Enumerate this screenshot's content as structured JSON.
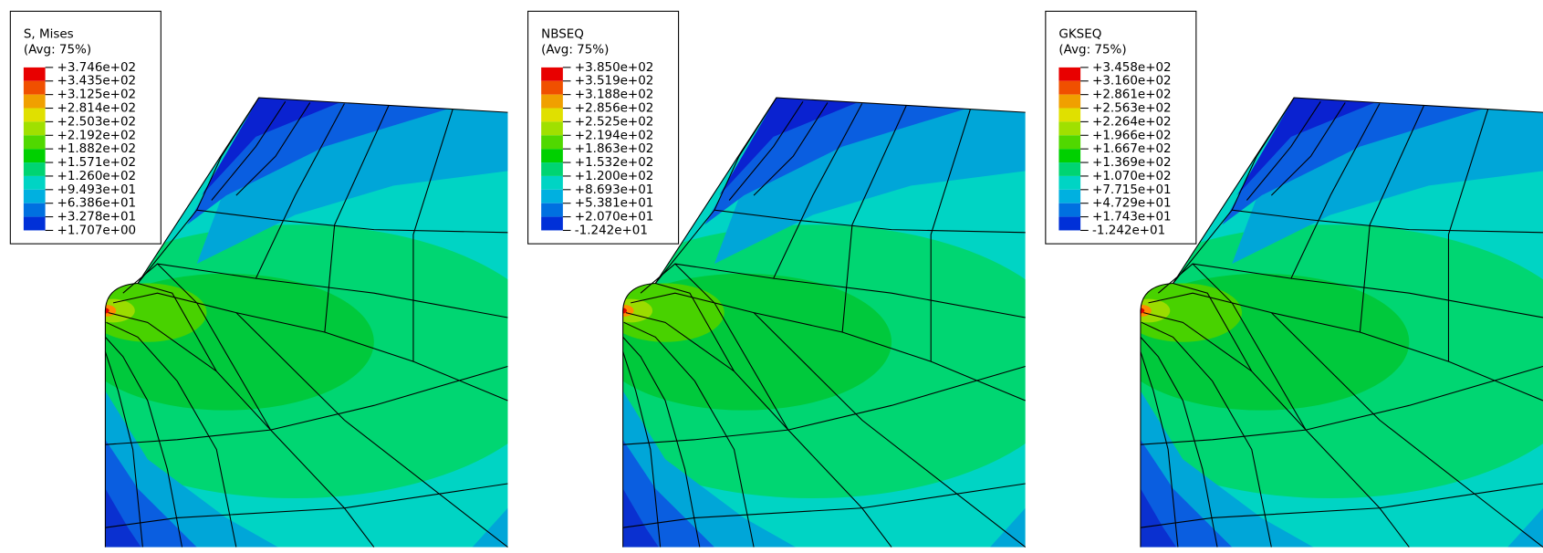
{
  "panels": [
    {
      "title": "S, Mises",
      "subtitle": "(Avg: 75%)",
      "labels": [
        "+3.746e+02",
        "+3.435e+02",
        "+3.125e+02",
        "+2.814e+02",
        "+2.503e+02",
        "+2.192e+02",
        "+1.882e+02",
        "+1.571e+02",
        "+1.260e+02",
        "+9.493e+01",
        "+6.386e+01",
        "+3.278e+01",
        "+1.707e+00"
      ]
    },
    {
      "title": "NBSEQ",
      "subtitle": "(Avg: 75%)",
      "labels": [
        "+3.850e+02",
        "+3.519e+02",
        "+3.188e+02",
        "+2.856e+02",
        "+2.525e+02",
        "+2.194e+02",
        "+1.863e+02",
        "+1.532e+02",
        "+1.200e+02",
        "+8.693e+01",
        "+5.381e+01",
        "+2.070e+01",
        "-1.242e+01"
      ]
    },
    {
      "title": "GKSEQ",
      "subtitle": "(Avg: 75%)",
      "labels": [
        "+3.458e+02",
        "+3.160e+02",
        "+2.861e+02",
        "+2.563e+02",
        "+2.264e+02",
        "+1.966e+02",
        "+1.667e+02",
        "+1.369e+02",
        "+1.070e+02",
        "+7.715e+01",
        "+4.729e+01",
        "+1.743e+01",
        "-1.242e+01"
      ]
    }
  ]
}
